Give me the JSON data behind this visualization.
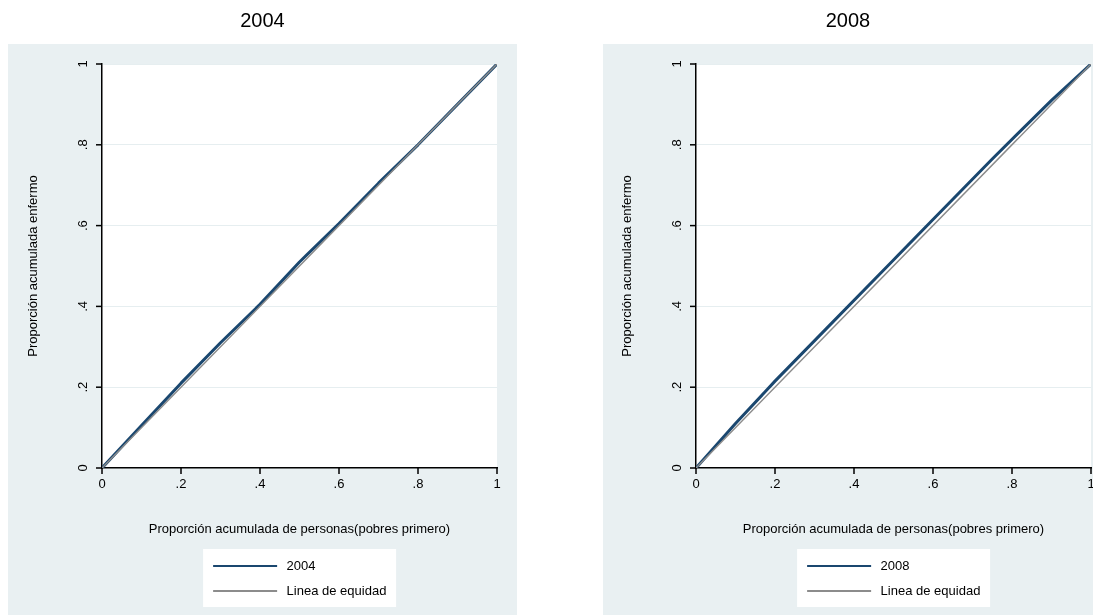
{
  "chart_data": [
    {
      "type": "line",
      "title": "2004",
      "xlabel": "Proporción acumulada de personas(pobres primero)",
      "ylabel": "Proporción acumulada enfermo",
      "xlim": [
        0,
        1
      ],
      "ylim": [
        0,
        1
      ],
      "xticks": [
        {
          "value": 0,
          "label": "0"
        },
        {
          "value": 0.2,
          "label": ".2"
        },
        {
          "value": 0.4,
          "label": ".4"
        },
        {
          "value": 0.6,
          "label": ".6"
        },
        {
          "value": 0.8,
          "label": ".8"
        },
        {
          "value": 1,
          "label": "1"
        }
      ],
      "yticks": [
        {
          "value": 0,
          "label": "0"
        },
        {
          "value": 0.2,
          "label": ".2"
        },
        {
          "value": 0.4,
          "label": ".4"
        },
        {
          "value": 0.6,
          "label": ".6"
        },
        {
          "value": 0.8,
          "label": ".8"
        },
        {
          "value": 1,
          "label": "1"
        }
      ],
      "grid": "y",
      "legend": "bottom",
      "marker": "none",
      "series": [
        {
          "name": "2004",
          "color": "#1a476f",
          "x": [
            0,
            0.1,
            0.2,
            0.3,
            0.4,
            0.5,
            0.6,
            0.7,
            0.8,
            0.9,
            1
          ],
          "values": [
            0,
            0.105,
            0.21,
            0.31,
            0.405,
            0.51,
            0.605,
            0.705,
            0.8,
            0.9,
            1
          ]
        },
        {
          "name": "Linea de equidad",
          "color": "#8c8c8c",
          "x": [
            0,
            1
          ],
          "values": [
            0,
            1
          ]
        }
      ]
    },
    {
      "type": "line",
      "title": "2008",
      "xlabel": "Proporción acumulada de personas(pobres primero)",
      "ylabel": "Proporción acumulada enfermo",
      "xlim": [
        0,
        1
      ],
      "ylim": [
        0,
        1
      ],
      "xticks": [
        {
          "value": 0,
          "label": "0"
        },
        {
          "value": 0.2,
          "label": ".2"
        },
        {
          "value": 0.4,
          "label": ".4"
        },
        {
          "value": 0.6,
          "label": ".6"
        },
        {
          "value": 0.8,
          "label": ".8"
        },
        {
          "value": 1,
          "label": "1"
        }
      ],
      "yticks": [
        {
          "value": 0,
          "label": "0"
        },
        {
          "value": 0.2,
          "label": ".2"
        },
        {
          "value": 0.4,
          "label": ".4"
        },
        {
          "value": 0.6,
          "label": ".6"
        },
        {
          "value": 0.8,
          "label": ".8"
        },
        {
          "value": 1,
          "label": "1"
        }
      ],
      "grid": "y",
      "legend": "bottom",
      "marker": "none",
      "series": [
        {
          "name": "2008",
          "color": "#1a476f",
          "x": [
            0,
            0.1,
            0.2,
            0.33,
            0.5,
            0.6,
            0.75,
            0.9,
            1
          ],
          "values": [
            0,
            0.11,
            0.215,
            0.345,
            0.515,
            0.615,
            0.765,
            0.91,
            1
          ]
        },
        {
          "name": "Linea de equidad",
          "color": "#8c8c8c",
          "x": [
            0,
            1
          ],
          "values": [
            0,
            1
          ]
        }
      ]
    }
  ]
}
